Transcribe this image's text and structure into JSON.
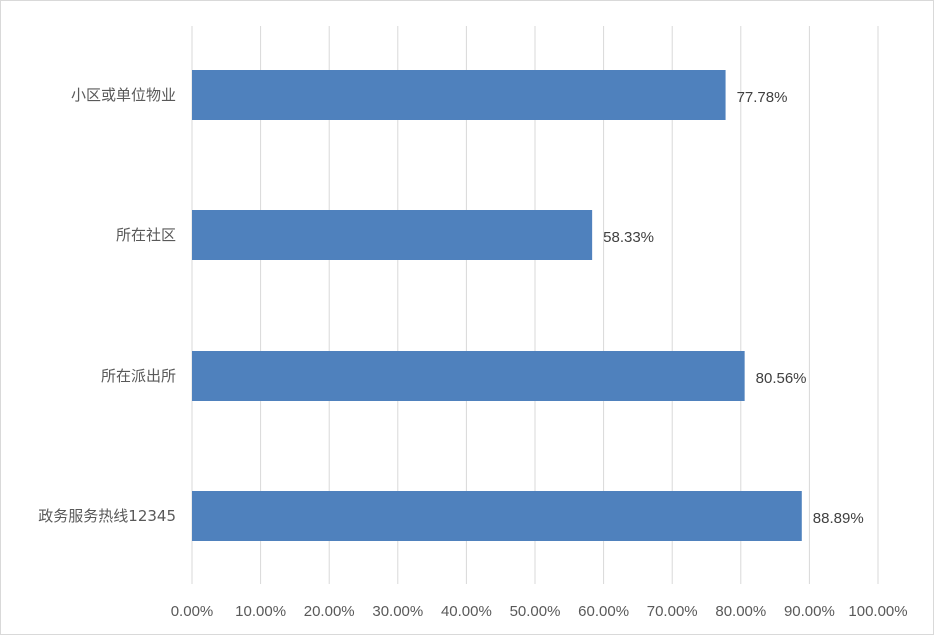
{
  "chart_data": {
    "type": "bar",
    "orientation": "horizontal",
    "categories": [
      "小区或单位物业",
      "所在社区",
      "所在派出所",
      "政务服务热线12345"
    ],
    "values": [
      77.78,
      58.33,
      80.56,
      88.89
    ],
    "value_labels": [
      "77.78%",
      "58.33%",
      "80.56%",
      "88.89%"
    ],
    "xlim": [
      0,
      100
    ],
    "x_ticks": [
      0,
      10,
      20,
      30,
      40,
      50,
      60,
      70,
      80,
      90,
      100
    ],
    "x_tick_labels": [
      "0.00%",
      "10.00%",
      "20.00%",
      "30.00%",
      "40.00%",
      "50.00%",
      "60.00%",
      "70.00%",
      "80.00%",
      "90.00%",
      "100.00%"
    ],
    "grid": true,
    "legend": "none",
    "bar_color": "#4f81bd",
    "grid_color": "#d9d9d9"
  }
}
